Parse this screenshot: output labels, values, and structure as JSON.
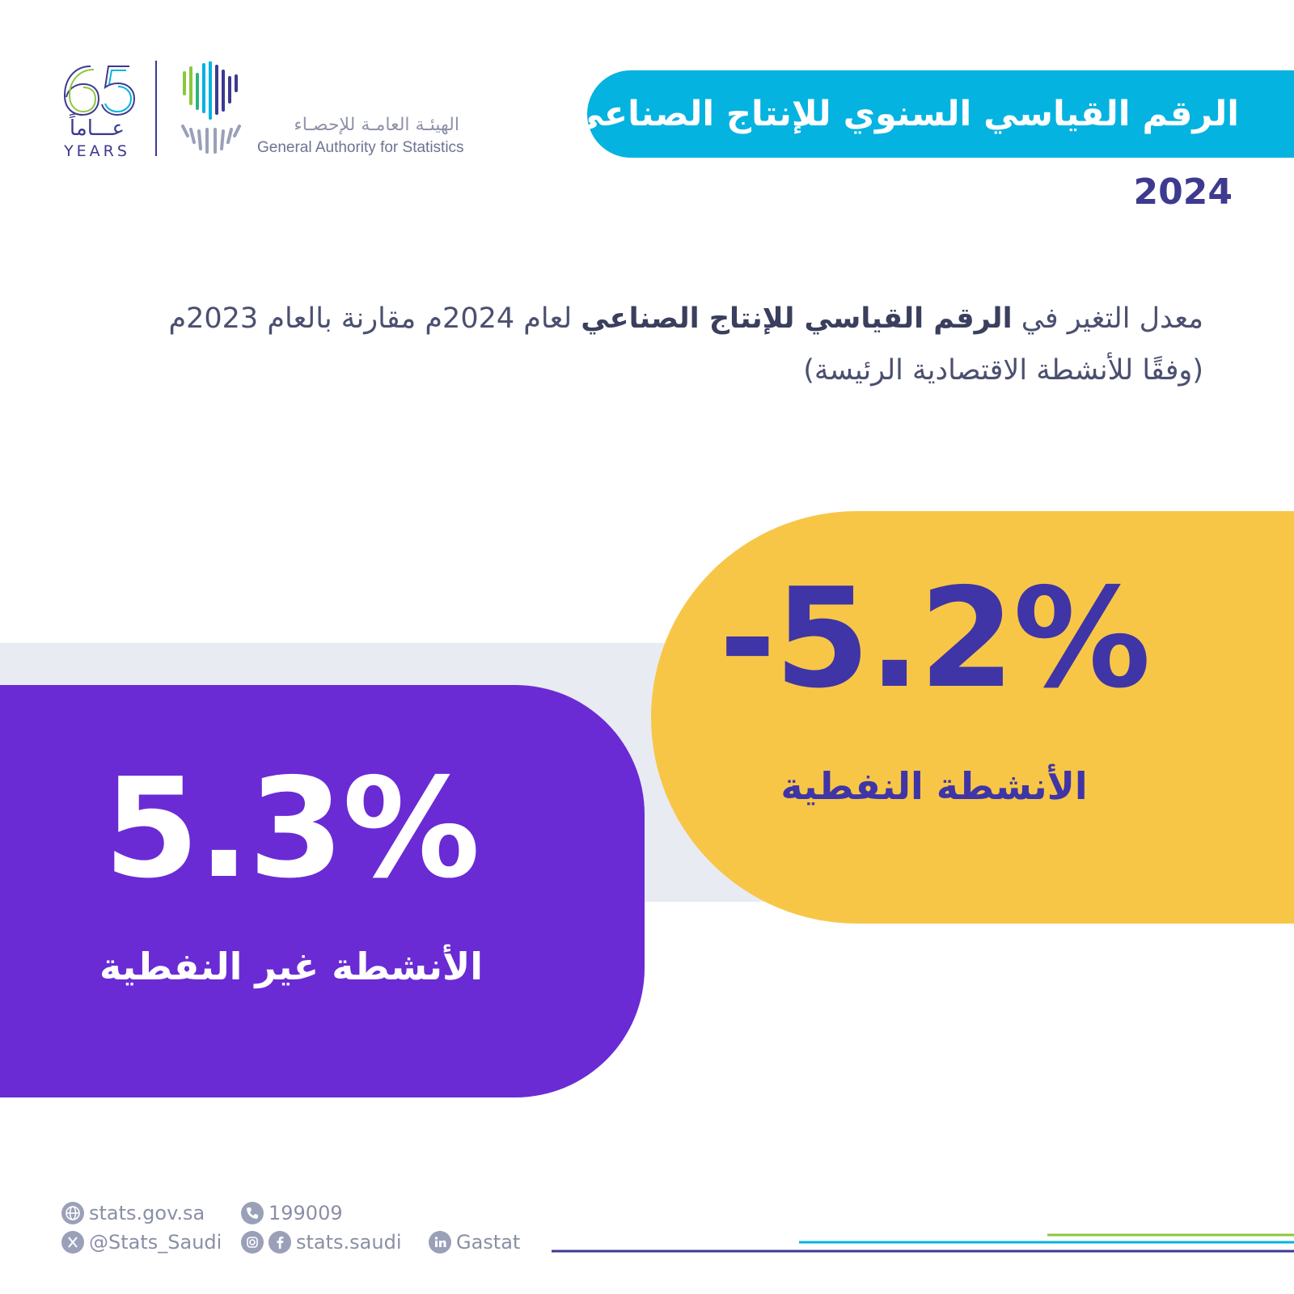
{
  "header": {
    "logo_65": {
      "number": "65",
      "arabic": "عـــاماً",
      "years": "YEARS"
    },
    "gastat": {
      "name_ar": "الهيئـة العامـة للإحصـاء",
      "name_en": "General Authority for Statistics"
    }
  },
  "title": "الرقم القياسي السنوي للإنتاج الصناعي",
  "year": "2024",
  "subtitle": {
    "prefix": "معدل التغير في ",
    "bold": "الرقم القياسي للإنتاج الصناعي",
    "suffix": " لعام 2024م مقارنة بالعام 2023م",
    "line2": "(وفقًا للأنشطة الاقتصادية الرئيسة)"
  },
  "stats": {
    "oil": {
      "value": "-5.2%",
      "label": "الأنشطة النفطية"
    },
    "non_oil": {
      "value": "5.3%",
      "label": "الأنشطة غير النفطية"
    }
  },
  "footer": {
    "website": "stats.gov.sa",
    "phone": "199009",
    "twitter": "@Stats_Saudi",
    "social": "stats.saudi",
    "linkedin": "Gastat"
  },
  "colors": {
    "title_bg": "#05b3e0",
    "navy": "#3d3a8f",
    "yellow": "#f8c647",
    "purple": "#6a2bd5",
    "grey_band": "#e8ebf2"
  }
}
